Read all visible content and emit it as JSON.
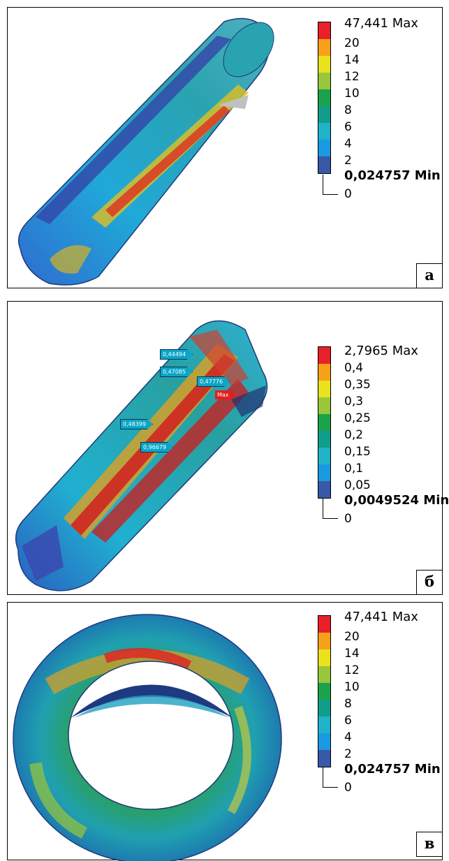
{
  "panels": [
    {
      "letter": "а",
      "legend": {
        "max": "47,441 Max",
        "ticks": [
          "20",
          "14",
          "12",
          "10",
          "8",
          "6",
          "4",
          "2"
        ],
        "min": "0,024757 Min",
        "zero": "0"
      }
    },
    {
      "letter": "б",
      "legend": {
        "max": "2,7965 Max",
        "ticks": [
          "0,4",
          "0,35",
          "0,3",
          "0,25",
          "0,2",
          "0,15",
          "0,1",
          "0,05"
        ],
        "min": "0,0049524 Min",
        "zero": "0"
      },
      "probes": [
        "0,44494",
        "0,47085",
        "0,47776",
        "Max",
        "0,48399",
        "0,96679"
      ]
    },
    {
      "letter": "в",
      "legend": {
        "max": "47,441 Max",
        "ticks": [
          "20",
          "14",
          "12",
          "10",
          "8",
          "6",
          "4",
          "2"
        ],
        "min": "0,024757 Min",
        "zero": "0"
      }
    }
  ],
  "scale_colors": [
    "#e8202a",
    "#f7a11a",
    "#e9e21c",
    "#99c63a",
    "#1aa34a",
    "#109d8c",
    "#20b2c9",
    "#1a9ae0",
    "#3a58a8"
  ]
}
